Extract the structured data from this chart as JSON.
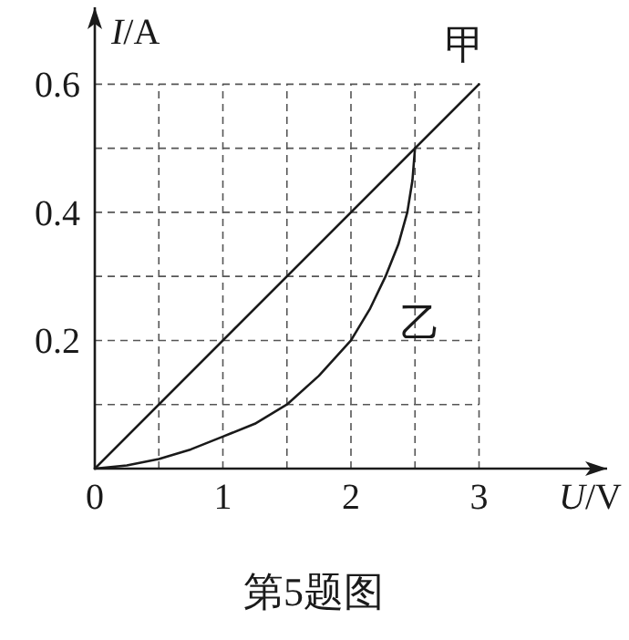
{
  "chart_data": {
    "type": "line",
    "title": "第5题图",
    "xlabel": "U/V",
    "ylabel": "I/A",
    "xlim": [
      0,
      4
    ],
    "ylim": [
      0,
      0.72
    ],
    "xticks": [
      0,
      {
        "value": 0.5,
        "label": null
      },
      1,
      {
        "value": 1.5,
        "label": null
      },
      2,
      {
        "value": 2.5,
        "label": null
      },
      3
    ],
    "yticks": [
      {
        "value": 0.1,
        "label": null
      },
      0.2,
      {
        "value": 0.3,
        "label": null
      },
      0.4,
      {
        "value": 0.5,
        "label": null
      },
      0.6
    ],
    "grid": true,
    "series": [
      {
        "name": "甲",
        "color": "#1a1a1a",
        "x": [
          0,
          3
        ],
        "values": [
          0,
          0.6
        ]
      },
      {
        "name": "乙",
        "color": "#1a1a1a",
        "x": [
          0,
          0.25,
          0.5,
          0.75,
          1,
          1.25,
          1.5,
          1.75,
          2,
          2.15,
          2.27,
          2.37,
          2.44,
          2.48,
          2.5
        ],
        "values": [
          0,
          0.005,
          0.015,
          0.03,
          0.05,
          0.07,
          0.1,
          0.145,
          0.2,
          0.25,
          0.3,
          0.35,
          0.4,
          0.45,
          0.5
        ]
      }
    ]
  }
}
